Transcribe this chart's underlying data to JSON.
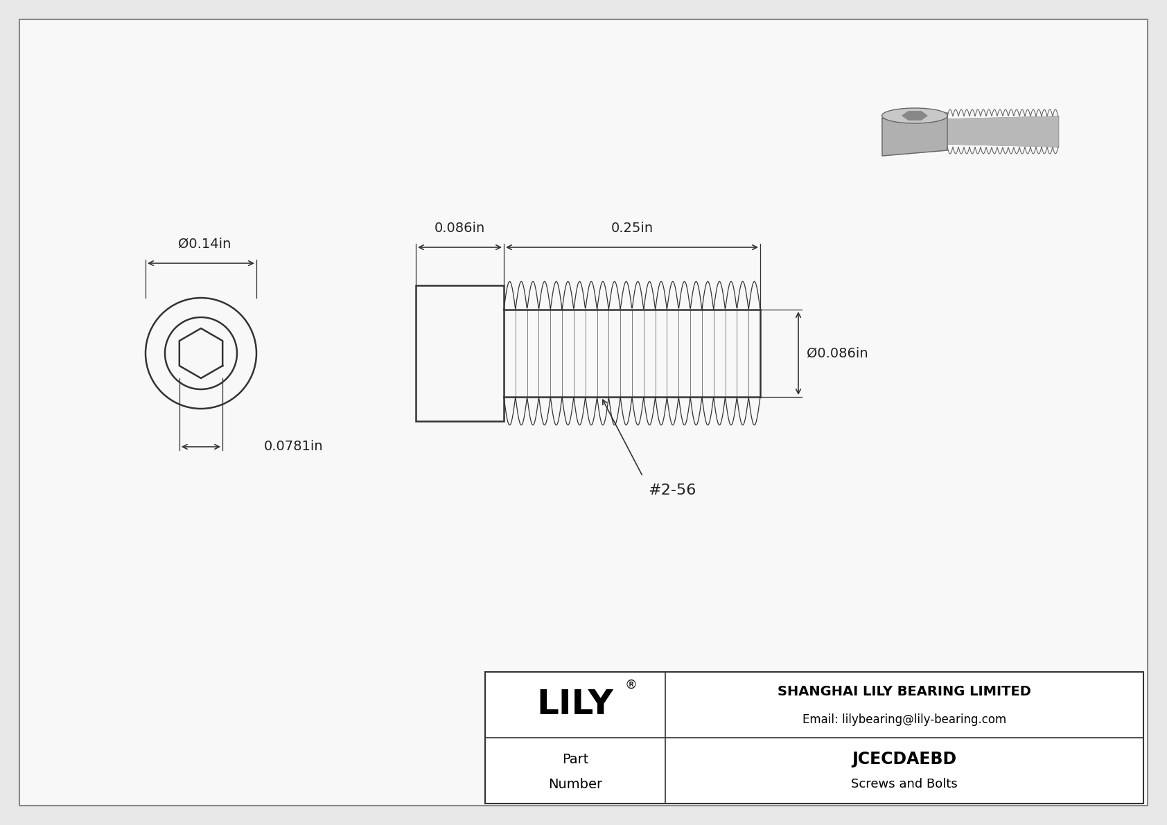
{
  "bg_color": "#e8e8e8",
  "drawing_bg": "#f5f5f5",
  "border_color": "#555555",
  "line_color": "#333333",
  "dim_color": "#333333",
  "text_color": "#222222",
  "title_company": "SHANGHAI LILY BEARING LIMITED",
  "title_email": "Email: lilybearing@lily-bearing.com",
  "part_number": "JCECDAEBD",
  "part_category": "Screws and Bolts",
  "brand": "LILY",
  "dim_diameter_head": "Ø0.14in",
  "dim_socket_width": "0.0781in",
  "dim_head_length": "0.086in",
  "dim_shaft_length": "0.25in",
  "dim_shaft_diameter": "Ø0.086in",
  "thread_label": "#2-56"
}
